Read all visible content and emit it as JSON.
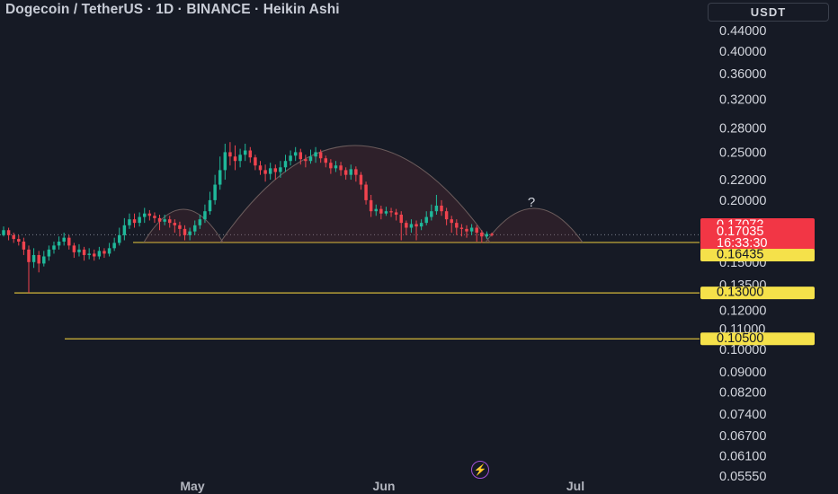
{
  "header": {
    "title": "Dogecoin / TetherUS · 1D · BINANCE · Heikin Ashi",
    "currency_button": "USDT"
  },
  "chart_data": {
    "type": "candlestick",
    "symbol": "Dogecoin / TetherUS",
    "interval": "1D",
    "exchange": "BINANCE",
    "candle_style": "Heikin Ashi",
    "y_scale": "log",
    "y_ticks": [
      "0.44000",
      "0.40000",
      "0.36000",
      "0.32000",
      "0.28000",
      "0.25000",
      "0.22000",
      "0.20000",
      "0.15000",
      "0.13500",
      "0.12000",
      "0.11000",
      "0.10000",
      "0.09000",
      "0.08200",
      "0.07400",
      "0.06700",
      "0.06100",
      "0.05550"
    ],
    "x_ticks": [
      "May",
      "Jun",
      "Jul"
    ],
    "price_labels": {
      "high": "0.17072",
      "last": "0.17035",
      "countdown": "16:33:30",
      "support_1": "0.16435",
      "support_2": "0.13000",
      "support_3": "0.10500"
    },
    "annotation": "?",
    "candles": [
      [
        0.17,
        0.174,
        0.177,
        0.169
      ],
      [
        0.174,
        0.17,
        0.176,
        0.166
      ],
      [
        0.17,
        0.167,
        0.172,
        0.164
      ],
      [
        0.167,
        0.165,
        0.17,
        0.162
      ],
      [
        0.165,
        0.159,
        0.168,
        0.155
      ],
      [
        0.159,
        0.15,
        0.162,
        0.13
      ],
      [
        0.15,
        0.155,
        0.16,
        0.146
      ],
      [
        0.155,
        0.149,
        0.158,
        0.143
      ],
      [
        0.149,
        0.154,
        0.158,
        0.147
      ],
      [
        0.154,
        0.159,
        0.162,
        0.151
      ],
      [
        0.159,
        0.162,
        0.165,
        0.156
      ],
      [
        0.162,
        0.165,
        0.169,
        0.159
      ],
      [
        0.165,
        0.168,
        0.172,
        0.162
      ],
      [
        0.168,
        0.162,
        0.17,
        0.159
      ],
      [
        0.162,
        0.157,
        0.164,
        0.153
      ],
      [
        0.157,
        0.159,
        0.163,
        0.154
      ],
      [
        0.159,
        0.155,
        0.161,
        0.151
      ],
      [
        0.155,
        0.156,
        0.16,
        0.152
      ],
      [
        0.156,
        0.154,
        0.159,
        0.151
      ],
      [
        0.154,
        0.158,
        0.161,
        0.152
      ],
      [
        0.158,
        0.156,
        0.16,
        0.153
      ],
      [
        0.156,
        0.16,
        0.164,
        0.154
      ],
      [
        0.16,
        0.164,
        0.168,
        0.158
      ],
      [
        0.164,
        0.17,
        0.176,
        0.162
      ],
      [
        0.17,
        0.178,
        0.184,
        0.166
      ],
      [
        0.178,
        0.183,
        0.188,
        0.175
      ],
      [
        0.183,
        0.18,
        0.188,
        0.176
      ],
      [
        0.18,
        0.185,
        0.189,
        0.177
      ],
      [
        0.185,
        0.188,
        0.193,
        0.18
      ],
      [
        0.188,
        0.186,
        0.191,
        0.182
      ],
      [
        0.186,
        0.184,
        0.189,
        0.18
      ],
      [
        0.184,
        0.181,
        0.187,
        0.174
      ],
      [
        0.181,
        0.183,
        0.187,
        0.178
      ],
      [
        0.183,
        0.18,
        0.186,
        0.176
      ],
      [
        0.18,
        0.178,
        0.183,
        0.172
      ],
      [
        0.178,
        0.175,
        0.181,
        0.169
      ],
      [
        0.175,
        0.17,
        0.178,
        0.166
      ],
      [
        0.17,
        0.173,
        0.176,
        0.166
      ],
      [
        0.173,
        0.178,
        0.182,
        0.17
      ],
      [
        0.178,
        0.183,
        0.187,
        0.175
      ],
      [
        0.183,
        0.19,
        0.196,
        0.18
      ],
      [
        0.19,
        0.2,
        0.208,
        0.187
      ],
      [
        0.2,
        0.215,
        0.225,
        0.196
      ],
      [
        0.215,
        0.23,
        0.245,
        0.21
      ],
      [
        0.23,
        0.25,
        0.26,
        0.22
      ],
      [
        0.25,
        0.245,
        0.262,
        0.235
      ],
      [
        0.245,
        0.24,
        0.258,
        0.23
      ],
      [
        0.24,
        0.247,
        0.254,
        0.233
      ],
      [
        0.247,
        0.252,
        0.26,
        0.24
      ],
      [
        0.252,
        0.244,
        0.256,
        0.238
      ],
      [
        0.244,
        0.235,
        0.247,
        0.23
      ],
      [
        0.235,
        0.23,
        0.24,
        0.225
      ],
      [
        0.23,
        0.226,
        0.236,
        0.218
      ],
      [
        0.226,
        0.232,
        0.238,
        0.22
      ],
      [
        0.232,
        0.228,
        0.236,
        0.22
      ],
      [
        0.228,
        0.233,
        0.24,
        0.222
      ],
      [
        0.233,
        0.24,
        0.247,
        0.228
      ],
      [
        0.24,
        0.246,
        0.252,
        0.235
      ],
      [
        0.246,
        0.25,
        0.256,
        0.24
      ],
      [
        0.25,
        0.242,
        0.254,
        0.236
      ],
      [
        0.242,
        0.24,
        0.247,
        0.233
      ],
      [
        0.24,
        0.245,
        0.253,
        0.237
      ],
      [
        0.245,
        0.25,
        0.256,
        0.238
      ],
      [
        0.25,
        0.243,
        0.253,
        0.238
      ],
      [
        0.243,
        0.238,
        0.246,
        0.233
      ],
      [
        0.238,
        0.232,
        0.242,
        0.226
      ],
      [
        0.232,
        0.235,
        0.24,
        0.228
      ],
      [
        0.235,
        0.23,
        0.239,
        0.224
      ],
      [
        0.23,
        0.225,
        0.233,
        0.22
      ],
      [
        0.225,
        0.231,
        0.236,
        0.22
      ],
      [
        0.231,
        0.225,
        0.234,
        0.218
      ],
      [
        0.225,
        0.215,
        0.228,
        0.21
      ],
      [
        0.215,
        0.2,
        0.218,
        0.196
      ],
      [
        0.2,
        0.19,
        0.205,
        0.185
      ],
      [
        0.19,
        0.192,
        0.196,
        0.186
      ],
      [
        0.192,
        0.188,
        0.195,
        0.183
      ],
      [
        0.188,
        0.19,
        0.194,
        0.186
      ],
      [
        0.19,
        0.189,
        0.193,
        0.185
      ],
      [
        0.189,
        0.187,
        0.192,
        0.182
      ],
      [
        0.187,
        0.18,
        0.19,
        0.166
      ],
      [
        0.18,
        0.176,
        0.182,
        0.17
      ],
      [
        0.176,
        0.179,
        0.183,
        0.172
      ],
      [
        0.179,
        0.177,
        0.182,
        0.166
      ],
      [
        0.177,
        0.18,
        0.183,
        0.174
      ],
      [
        0.18,
        0.185,
        0.19,
        0.178
      ],
      [
        0.185,
        0.19,
        0.196,
        0.182
      ],
      [
        0.19,
        0.195,
        0.205,
        0.187
      ],
      [
        0.195,
        0.19,
        0.2,
        0.186
      ],
      [
        0.19,
        0.183,
        0.193,
        0.178
      ],
      [
        0.183,
        0.18,
        0.186,
        0.172
      ],
      [
        0.18,
        0.176,
        0.183,
        0.17
      ],
      [
        0.176,
        0.175,
        0.179,
        0.169
      ],
      [
        0.175,
        0.173,
        0.178,
        0.168
      ],
      [
        0.173,
        0.176,
        0.179,
        0.17
      ],
      [
        0.176,
        0.172,
        0.178,
        0.165
      ],
      [
        0.172,
        0.169,
        0.174,
        0.164
      ],
      [
        0.169,
        0.171,
        0.173,
        0.167
      ],
      [
        0.171,
        0.17,
        0.172,
        0.169
      ]
    ]
  }
}
